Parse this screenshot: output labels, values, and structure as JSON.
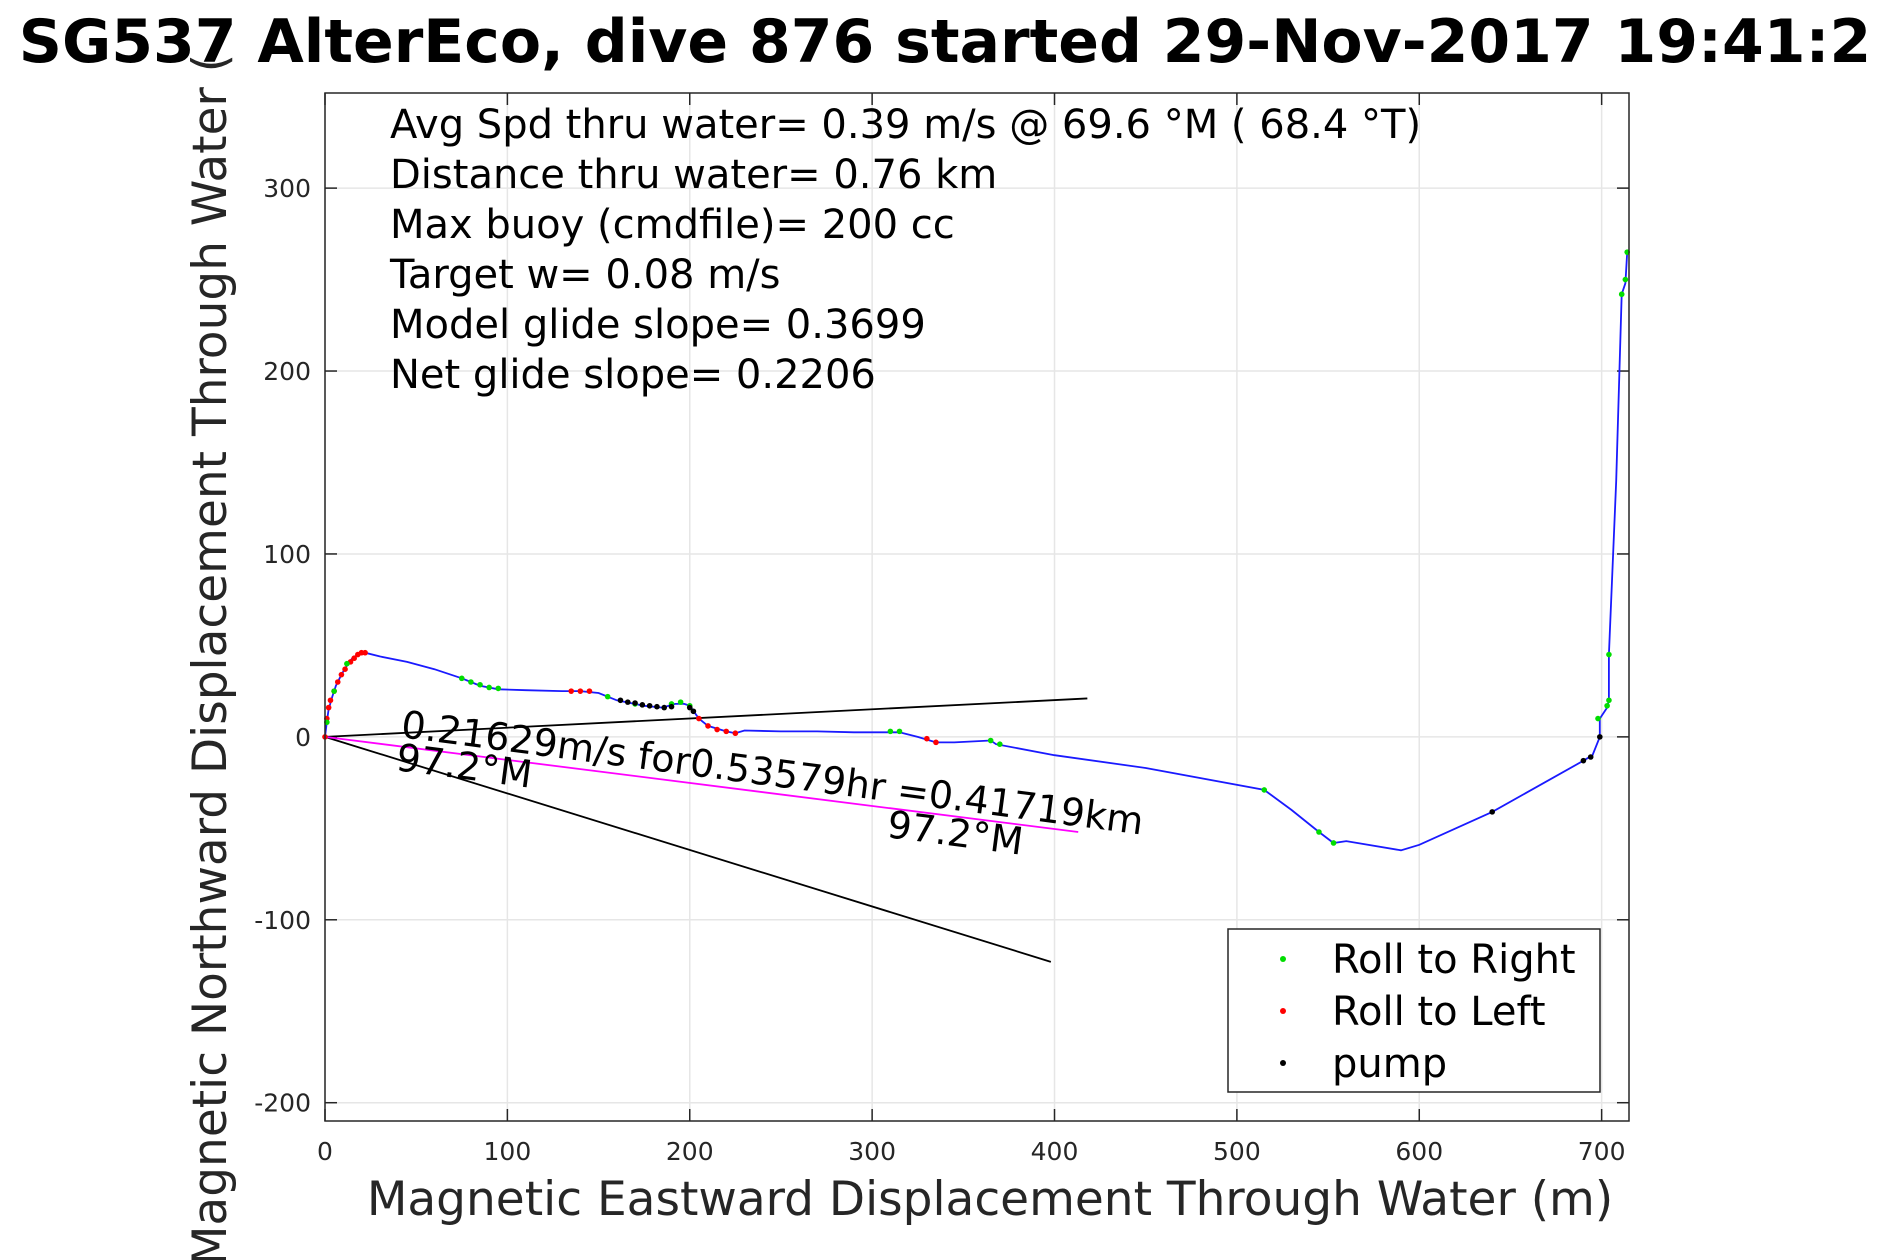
{
  "chart_data": {
    "type": "line",
    "title": "SG537 AlterEco, dive 876 started 29-Nov-2017 19:41:2",
    "xlabel": "Magnetic Eastward Displacement Through Water (m)",
    "ylabel": "Magnetic Northward Displacement Through Water (",
    "xlim": [
      0,
      715
    ],
    "ylim": [
      -210,
      352
    ],
    "x_ticks": [
      0,
      100,
      200,
      300,
      400,
      500,
      600,
      700
    ],
    "y_ticks": [
      -200,
      -100,
      0,
      100,
      200,
      300
    ],
    "x_tick_labels": [
      "0",
      "100",
      "200",
      "300",
      "400",
      "500",
      "600",
      "700"
    ],
    "y_tick_labels": [
      "-200",
      "-100",
      "0",
      "100",
      "200",
      "300"
    ],
    "grid": true,
    "legend_position": "bottom-right",
    "colors": {
      "track": "#1a1aff",
      "roll_right": "#00dd00",
      "roll_left": "#ff0000",
      "pump": "#000000",
      "current": "#ff00ff",
      "axes": "#262626",
      "grid": "#e6e6e6"
    },
    "stats": [
      "Avg Spd thru water=  0.39 m/s @  69.6 °M ( 68.4 °T)",
      "Distance thru water=  0.76 km",
      "Max buoy (cmdfile)= 200 cc",
      "Target w= 0.08 m/s",
      "Model glide slope= 0.3699",
      "Net glide slope= 0.2206"
    ],
    "annotations": {
      "current": "0.21629m/s for0.53579hr =0.41719km",
      "heading_left": "97.2°M",
      "heading_right": "97.2°M"
    },
    "track": [
      [
        0,
        0
      ],
      [
        1,
        8
      ],
      [
        2,
        15
      ],
      [
        4,
        22
      ],
      [
        6,
        28
      ],
      [
        9,
        34
      ],
      [
        12,
        39
      ],
      [
        15,
        43
      ],
      [
        18,
        45
      ],
      [
        22,
        46
      ],
      [
        30,
        44
      ],
      [
        45,
        41
      ],
      [
        60,
        37
      ],
      [
        75,
        32
      ],
      [
        80,
        30
      ],
      [
        85,
        28
      ],
      [
        95,
        26
      ],
      [
        110,
        25.5
      ],
      [
        130,
        25
      ],
      [
        140,
        25
      ],
      [
        150,
        24
      ],
      [
        160,
        20
      ],
      [
        175,
        17
      ],
      [
        185,
        16
      ],
      [
        192,
        18
      ],
      [
        197,
        18
      ],
      [
        200,
        17
      ],
      [
        205,
        10
      ],
      [
        210,
        6
      ],
      [
        220,
        3
      ],
      [
        225,
        2
      ],
      [
        230,
        3.5
      ],
      [
        250,
        3
      ],
      [
        270,
        3
      ],
      [
        290,
        2.5
      ],
      [
        300,
        2.5
      ],
      [
        315,
        2.5
      ],
      [
        325,
        0
      ],
      [
        335,
        -3
      ],
      [
        345,
        -3
      ],
      [
        365,
        -2
      ],
      [
        368,
        -4
      ],
      [
        400,
        -10
      ],
      [
        450,
        -17
      ],
      [
        515,
        -29
      ],
      [
        530,
        -40
      ],
      [
        545,
        -52
      ],
      [
        553,
        -58
      ],
      [
        560,
        -57
      ],
      [
        590,
        -62
      ],
      [
        600,
        -59
      ],
      [
        640,
        -41
      ],
      [
        690,
        -13
      ],
      [
        695,
        -10
      ],
      [
        699,
        0
      ],
      [
        699,
        10
      ],
      [
        703,
        16
      ],
      [
        704,
        20
      ],
      [
        704,
        45
      ],
      [
        708,
        140
      ],
      [
        711,
        242
      ],
      [
        713,
        248
      ],
      [
        714,
        265
      ]
    ],
    "roll_right": [
      [
        1,
        8
      ],
      [
        5,
        25
      ],
      [
        12,
        40
      ],
      [
        75,
        32
      ],
      [
        80,
        30
      ],
      [
        85,
        28.5
      ],
      [
        90,
        27
      ],
      [
        95,
        26.5
      ],
      [
        155,
        22
      ],
      [
        170,
        18
      ],
      [
        190,
        18
      ],
      [
        195,
        19
      ],
      [
        200,
        17
      ],
      [
        310,
        3
      ],
      [
        315,
        3
      ],
      [
        365,
        -2
      ],
      [
        370,
        -4
      ],
      [
        515,
        -29
      ],
      [
        545,
        -52
      ],
      [
        553,
        -58
      ],
      [
        698,
        10
      ],
      [
        703,
        17
      ],
      [
        704,
        20
      ],
      [
        704,
        45
      ],
      [
        711,
        242
      ],
      [
        713,
        250
      ],
      [
        714,
        265
      ]
    ],
    "roll_left": [
      [
        0,
        0
      ],
      [
        1,
        10
      ],
      [
        2,
        16
      ],
      [
        3,
        20
      ],
      [
        5,
        25
      ],
      [
        7,
        30
      ],
      [
        9,
        34
      ],
      [
        11,
        37
      ],
      [
        14,
        41
      ],
      [
        16,
        43
      ],
      [
        18,
        45
      ],
      [
        20,
        46
      ],
      [
        22,
        46
      ],
      [
        135,
        25
      ],
      [
        140,
        25
      ],
      [
        145,
        25
      ],
      [
        205,
        10
      ],
      [
        210,
        6
      ],
      [
        215,
        4
      ],
      [
        220,
        3
      ],
      [
        225,
        2
      ],
      [
        330,
        -1
      ],
      [
        335,
        -3
      ]
    ],
    "pump": [
      [
        162,
        20
      ],
      [
        166,
        19
      ],
      [
        170,
        18.5
      ],
      [
        174,
        17.5
      ],
      [
        178,
        17
      ],
      [
        182,
        16.5
      ],
      [
        186,
        16
      ],
      [
        190,
        16.5
      ],
      [
        200,
        16
      ],
      [
        202,
        14
      ],
      [
        640,
        -41
      ],
      [
        690,
        -13
      ],
      [
        694,
        -11
      ],
      [
        699,
        0
      ]
    ],
    "ref_lines": [
      {
        "name": "glide-line-upper",
        "from": [
          0,
          0
        ],
        "to": [
          418,
          21
        ]
      },
      {
        "name": "glide-line-lower",
        "from": [
          0,
          0
        ],
        "to": [
          398,
          -123
        ]
      },
      {
        "name": "current-line",
        "from": [
          0,
          0
        ],
        "to": [
          413,
          -52
        ]
      }
    ],
    "legend": [
      {
        "label": "Roll to Right",
        "key": "roll_right"
      },
      {
        "label": "Roll to Left",
        "key": "roll_left"
      },
      {
        "label": "pump",
        "key": "pump"
      }
    ]
  }
}
